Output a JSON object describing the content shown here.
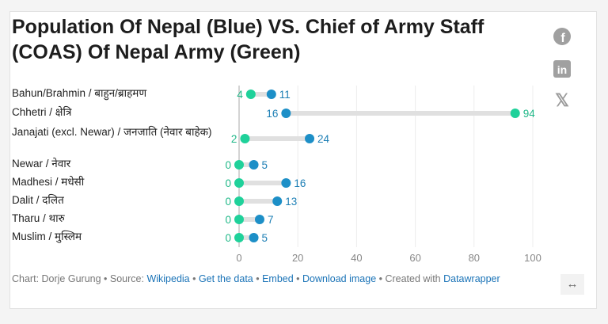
{
  "chart_data": {
    "type": "dot-range",
    "title": "Population Of Nepal (Blue) VS. Chief of Army Staff (COAS) Of Nepal Army (Green)",
    "categories": [
      "Bahun/Brahmin / बाहुन/ब्राहमण",
      "Chhetri / क्षेत्रि",
      "Janajati (excl. Newar) / जनजाति (नेवार बाहेक)",
      "Newar / नेवार",
      "Madhesi / मधेसी",
      "Dalit / दलित",
      "Tharu / थारु",
      "Muslim / मुस्लिम"
    ],
    "series": [
      {
        "color": "#1d8fc7",
        "values": [
          11,
          16,
          24,
          5,
          16,
          13,
          7,
          5
        ]
      },
      {
        "color": "#1fd19a",
        "values": [
          4,
          94,
          2,
          0,
          0,
          0,
          0,
          0
        ]
      }
    ],
    "xlim": [
      0,
      100
    ],
    "xticks": [
      "0",
      "20",
      "40",
      "60",
      "80",
      "100"
    ],
    "grid": true
  },
  "social": [
    "facebook-icon",
    "linkedin-icon",
    "x-icon"
  ],
  "footer": {
    "prefix": "Chart: Dorje Gurung • Source: ",
    "source": "Wikipedia",
    "sep1": " • ",
    "get_data": "Get the data",
    "sep2": " • ",
    "embed": "Embed",
    "sep3": " • ",
    "download": "Download image",
    "sep4": " • Created with ",
    "datawrapper": "Datawrapper"
  },
  "expand_icon": "↔"
}
